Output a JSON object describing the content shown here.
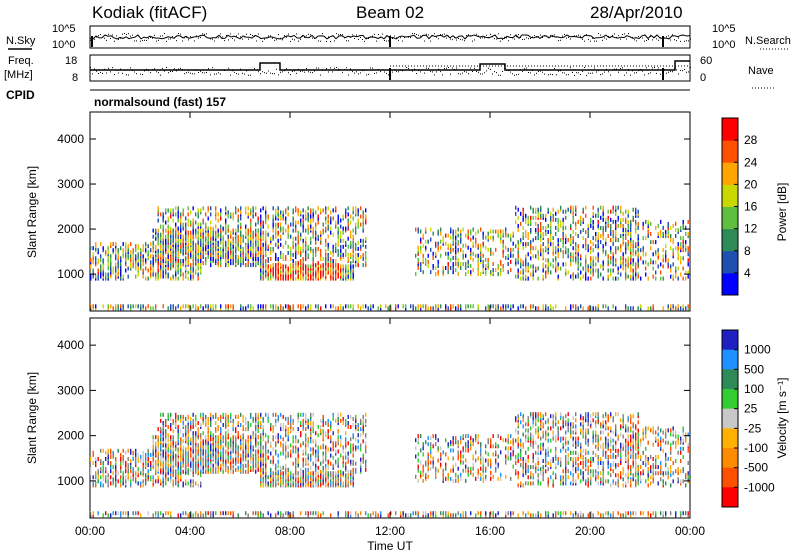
{
  "header": {
    "station": "Kodiak (fitACF)",
    "beam": "Beam 02",
    "date": "28/Apr/2010"
  },
  "summary_panels": {
    "nsky_label": "N.Sky",
    "nsearch_label": "N.Search",
    "freq_label": "Freq.",
    "freq_unit": "[MHz]",
    "nave_label": "Nave",
    "cpid_label": "CPID",
    "noise_ticks_left": [
      "10^5",
      "10^0"
    ],
    "noise_ticks_right": [
      "10^5",
      "10^0"
    ],
    "freq_ticks": [
      "18",
      "8"
    ],
    "nave_ticks": [
      "60",
      "0"
    ],
    "cpid_text": "normalsound (fast) 157"
  },
  "colors": {
    "power_scale": [
      "#0000ff",
      "#1f4fb0",
      "#2e8b57",
      "#5fbf3f",
      "#c8d800",
      "#ffa500",
      "#ff5000",
      "#ff0000"
    ],
    "velocity_scale": [
      "#ff0000",
      "#ff5000",
      "#ff8c00",
      "#ffb000",
      "#c8c8c8",
      "#32cd32",
      "#2e8b57",
      "#1e90ff",
      "#2020c0"
    ],
    "ground_scatter": "#808080"
  },
  "chart_data": [
    {
      "type": "heatmap",
      "name": "power",
      "ylabel": "Slant Range [km]",
      "ylim": [
        180,
        4600
      ],
      "yticks": [
        "1000",
        "2000",
        "3000",
        "4000"
      ],
      "xlim_hours": [
        0,
        24
      ],
      "colorbar": {
        "label": "Power [dB]",
        "range": [
          0,
          32
        ],
        "ticks": [
          "4",
          "8",
          "12",
          "16",
          "20",
          "24",
          "28"
        ]
      },
      "echo_bands_km": [
        {
          "range": [
            240,
            320
          ],
          "start": 0.0,
          "end": 24.0,
          "density": 0.55
        },
        {
          "range": [
            900,
            1200
          ],
          "start": 6.8,
          "end": 10.5,
          "density": 0.9
        },
        {
          "range": [
            900,
            1700
          ],
          "start": 0.0,
          "end": 4.5,
          "density": 0.45
        },
        {
          "range": [
            1200,
            2000
          ],
          "start": 2.5,
          "end": 7.0,
          "density": 0.6
        },
        {
          "range": [
            1200,
            2500
          ],
          "start": 2.7,
          "end": 11.0,
          "density": 0.35
        },
        {
          "range": [
            1000,
            2000
          ],
          "start": 13.0,
          "end": 17.0,
          "density": 0.3
        },
        {
          "range": [
            900,
            2500
          ],
          "start": 17.0,
          "end": 22.0,
          "density": 0.35
        },
        {
          "range": [
            900,
            2200
          ],
          "start": 21.5,
          "end": 24.0,
          "density": 0.25
        }
      ]
    },
    {
      "type": "heatmap",
      "name": "velocity",
      "ylabel": "Slant Range [km]",
      "xlabel": "Time UT",
      "ylim": [
        180,
        4600
      ],
      "yticks": [
        "1000",
        "2000",
        "3000",
        "4000"
      ],
      "xticks": [
        "00:00",
        "04:00",
        "08:00",
        "12:00",
        "16:00",
        "20:00",
        "00:00"
      ],
      "xlim_hours": [
        0,
        24
      ],
      "colorbar": {
        "label": "Velocity [m s⁻¹]",
        "ticks": [
          "1000",
          "500",
          "100",
          "25",
          "-25",
          "-100",
          "-500",
          "-1000"
        ]
      },
      "echo_bands_km": [
        {
          "range": [
            240,
            320
          ],
          "start": 0.0,
          "end": 24.0,
          "density": 0.55
        },
        {
          "range": [
            900,
            1200
          ],
          "start": 6.8,
          "end": 10.5,
          "density": 0.9
        },
        {
          "range": [
            900,
            1700
          ],
          "start": 0.0,
          "end": 4.5,
          "density": 0.45
        },
        {
          "range": [
            1200,
            2000
          ],
          "start": 2.5,
          "end": 7.0,
          "density": 0.6
        },
        {
          "range": [
            1200,
            2500
          ],
          "start": 2.7,
          "end": 11.0,
          "density": 0.35
        },
        {
          "range": [
            1000,
            2000
          ],
          "start": 13.0,
          "end": 17.0,
          "density": 0.3
        },
        {
          "range": [
            900,
            2500
          ],
          "start": 17.0,
          "end": 22.0,
          "density": 0.35
        },
        {
          "range": [
            900,
            2200
          ],
          "start": 21.5,
          "end": 24.0,
          "density": 0.25
        }
      ]
    }
  ]
}
